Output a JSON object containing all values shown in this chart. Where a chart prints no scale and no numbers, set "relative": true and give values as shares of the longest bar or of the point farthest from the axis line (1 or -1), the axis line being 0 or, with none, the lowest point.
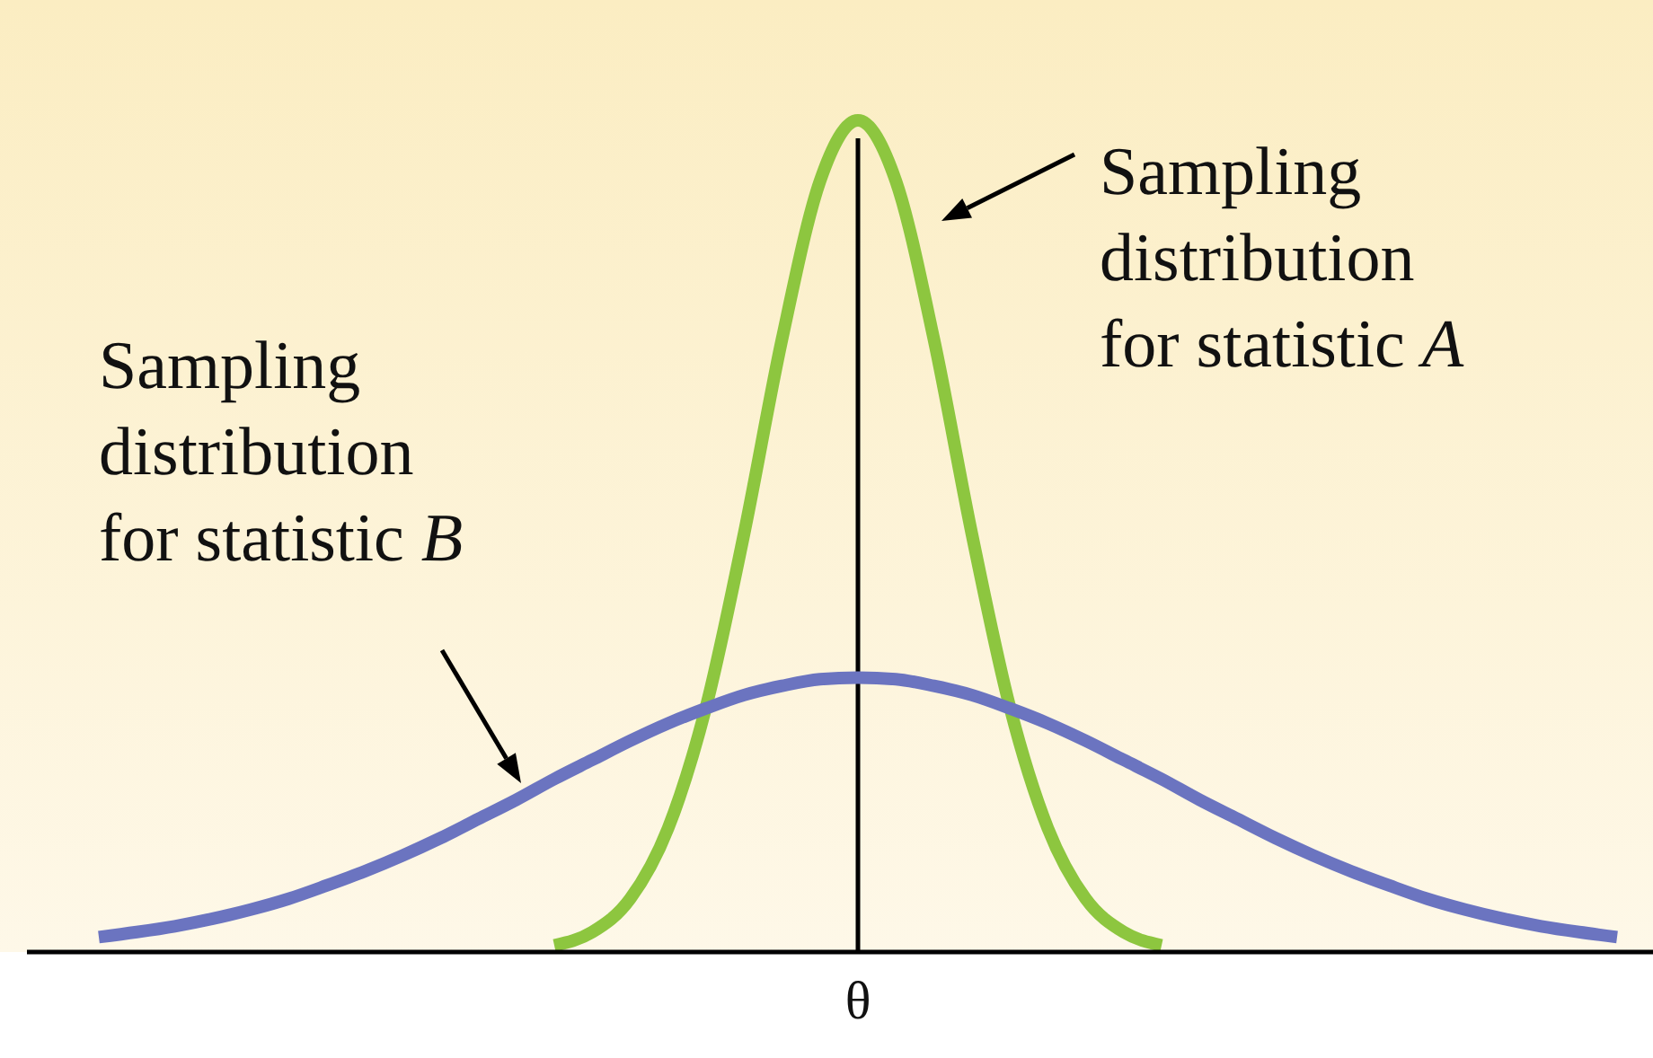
{
  "chart_data": {
    "type": "line",
    "relative": true,
    "legend": false,
    "categories": [
      null,
      null,
      null,
      null,
      null,
      null,
      null,
      null,
      null,
      null,
      null,
      null,
      null,
      null,
      null,
      null,
      null,
      null,
      null,
      null,
      null,
      null,
      null,
      null,
      null,
      null,
      null,
      null,
      null,
      null,
      null,
      null,
      null,
      null,
      null,
      null,
      null,
      null,
      null,
      null,
      null
    ],
    "series": [
      {
        "name": "Sampling distribution for statistic A",
        "color": "#8dc63f",
        "values": [
          null,
          null,
          null,
          null,
          null,
          null,
          null,
          null,
          null,
          null,
          null,
          null,
          0.008,
          0.024,
          0.064,
          0.149,
          0.295,
          0.503,
          0.737,
          0.927,
          1,
          0.927,
          0.737,
          0.503,
          0.295,
          0.149,
          0.064,
          0.024,
          0.008,
          null,
          null,
          null,
          null,
          null,
          null,
          null,
          null,
          null,
          null,
          null,
          null
        ]
      },
      {
        "name": "Sampling distribution for statistic B",
        "color": "#6b74c0",
        "values": [
          0.018,
          0.024,
          0.031,
          0.04,
          0.051,
          0.064,
          0.08,
          0.097,
          0.116,
          0.137,
          0.16,
          0.183,
          0.208,
          0.231,
          0.254,
          0.275,
          0.293,
          0.309,
          0.32,
          0.328,
          0.33,
          0.328,
          0.32,
          0.309,
          0.293,
          0.275,
          0.254,
          0.231,
          0.208,
          0.183,
          0.16,
          0.137,
          0.116,
          0.097,
          0.08,
          0.064,
          0.051,
          0.04,
          0.031,
          0.024,
          0.018
        ]
      }
    ],
    "ref_lines": [
      {
        "axis": "x",
        "label": "θ",
        "color": "#000000"
      }
    ]
  }
}
